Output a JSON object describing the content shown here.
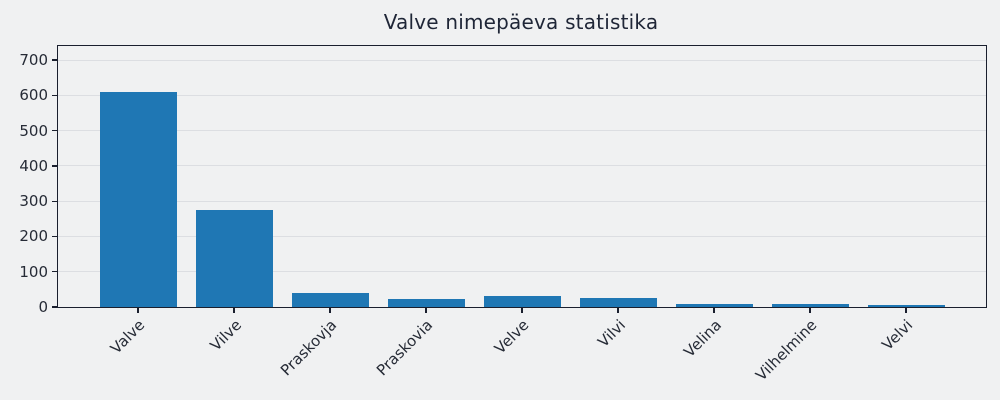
{
  "chart_data": {
    "type": "bar",
    "title": "Valve nimepäeva statistika",
    "categories": [
      "Valve",
      "Vilve",
      "Praskovja",
      "Praskovia",
      "Velve",
      "Vilvi",
      "Velina",
      "Vilhelmine",
      "Velvi"
    ],
    "values": [
      610,
      274,
      39,
      22,
      30,
      26,
      8,
      8,
      5
    ],
    "xlabel": "",
    "ylabel": "",
    "ylim": [
      0,
      740
    ],
    "yticks": [
      0,
      100,
      200,
      300,
      400,
      500,
      600,
      700
    ],
    "grid": "horizontal",
    "legend": "none",
    "x_label_rotation_deg": 45,
    "bar_color": "#1f77b4",
    "background_color": "#f0f1f2",
    "spine_color": "#1a1f2e",
    "grid_color": "#dcdee2",
    "text_color": "#262b36"
  }
}
